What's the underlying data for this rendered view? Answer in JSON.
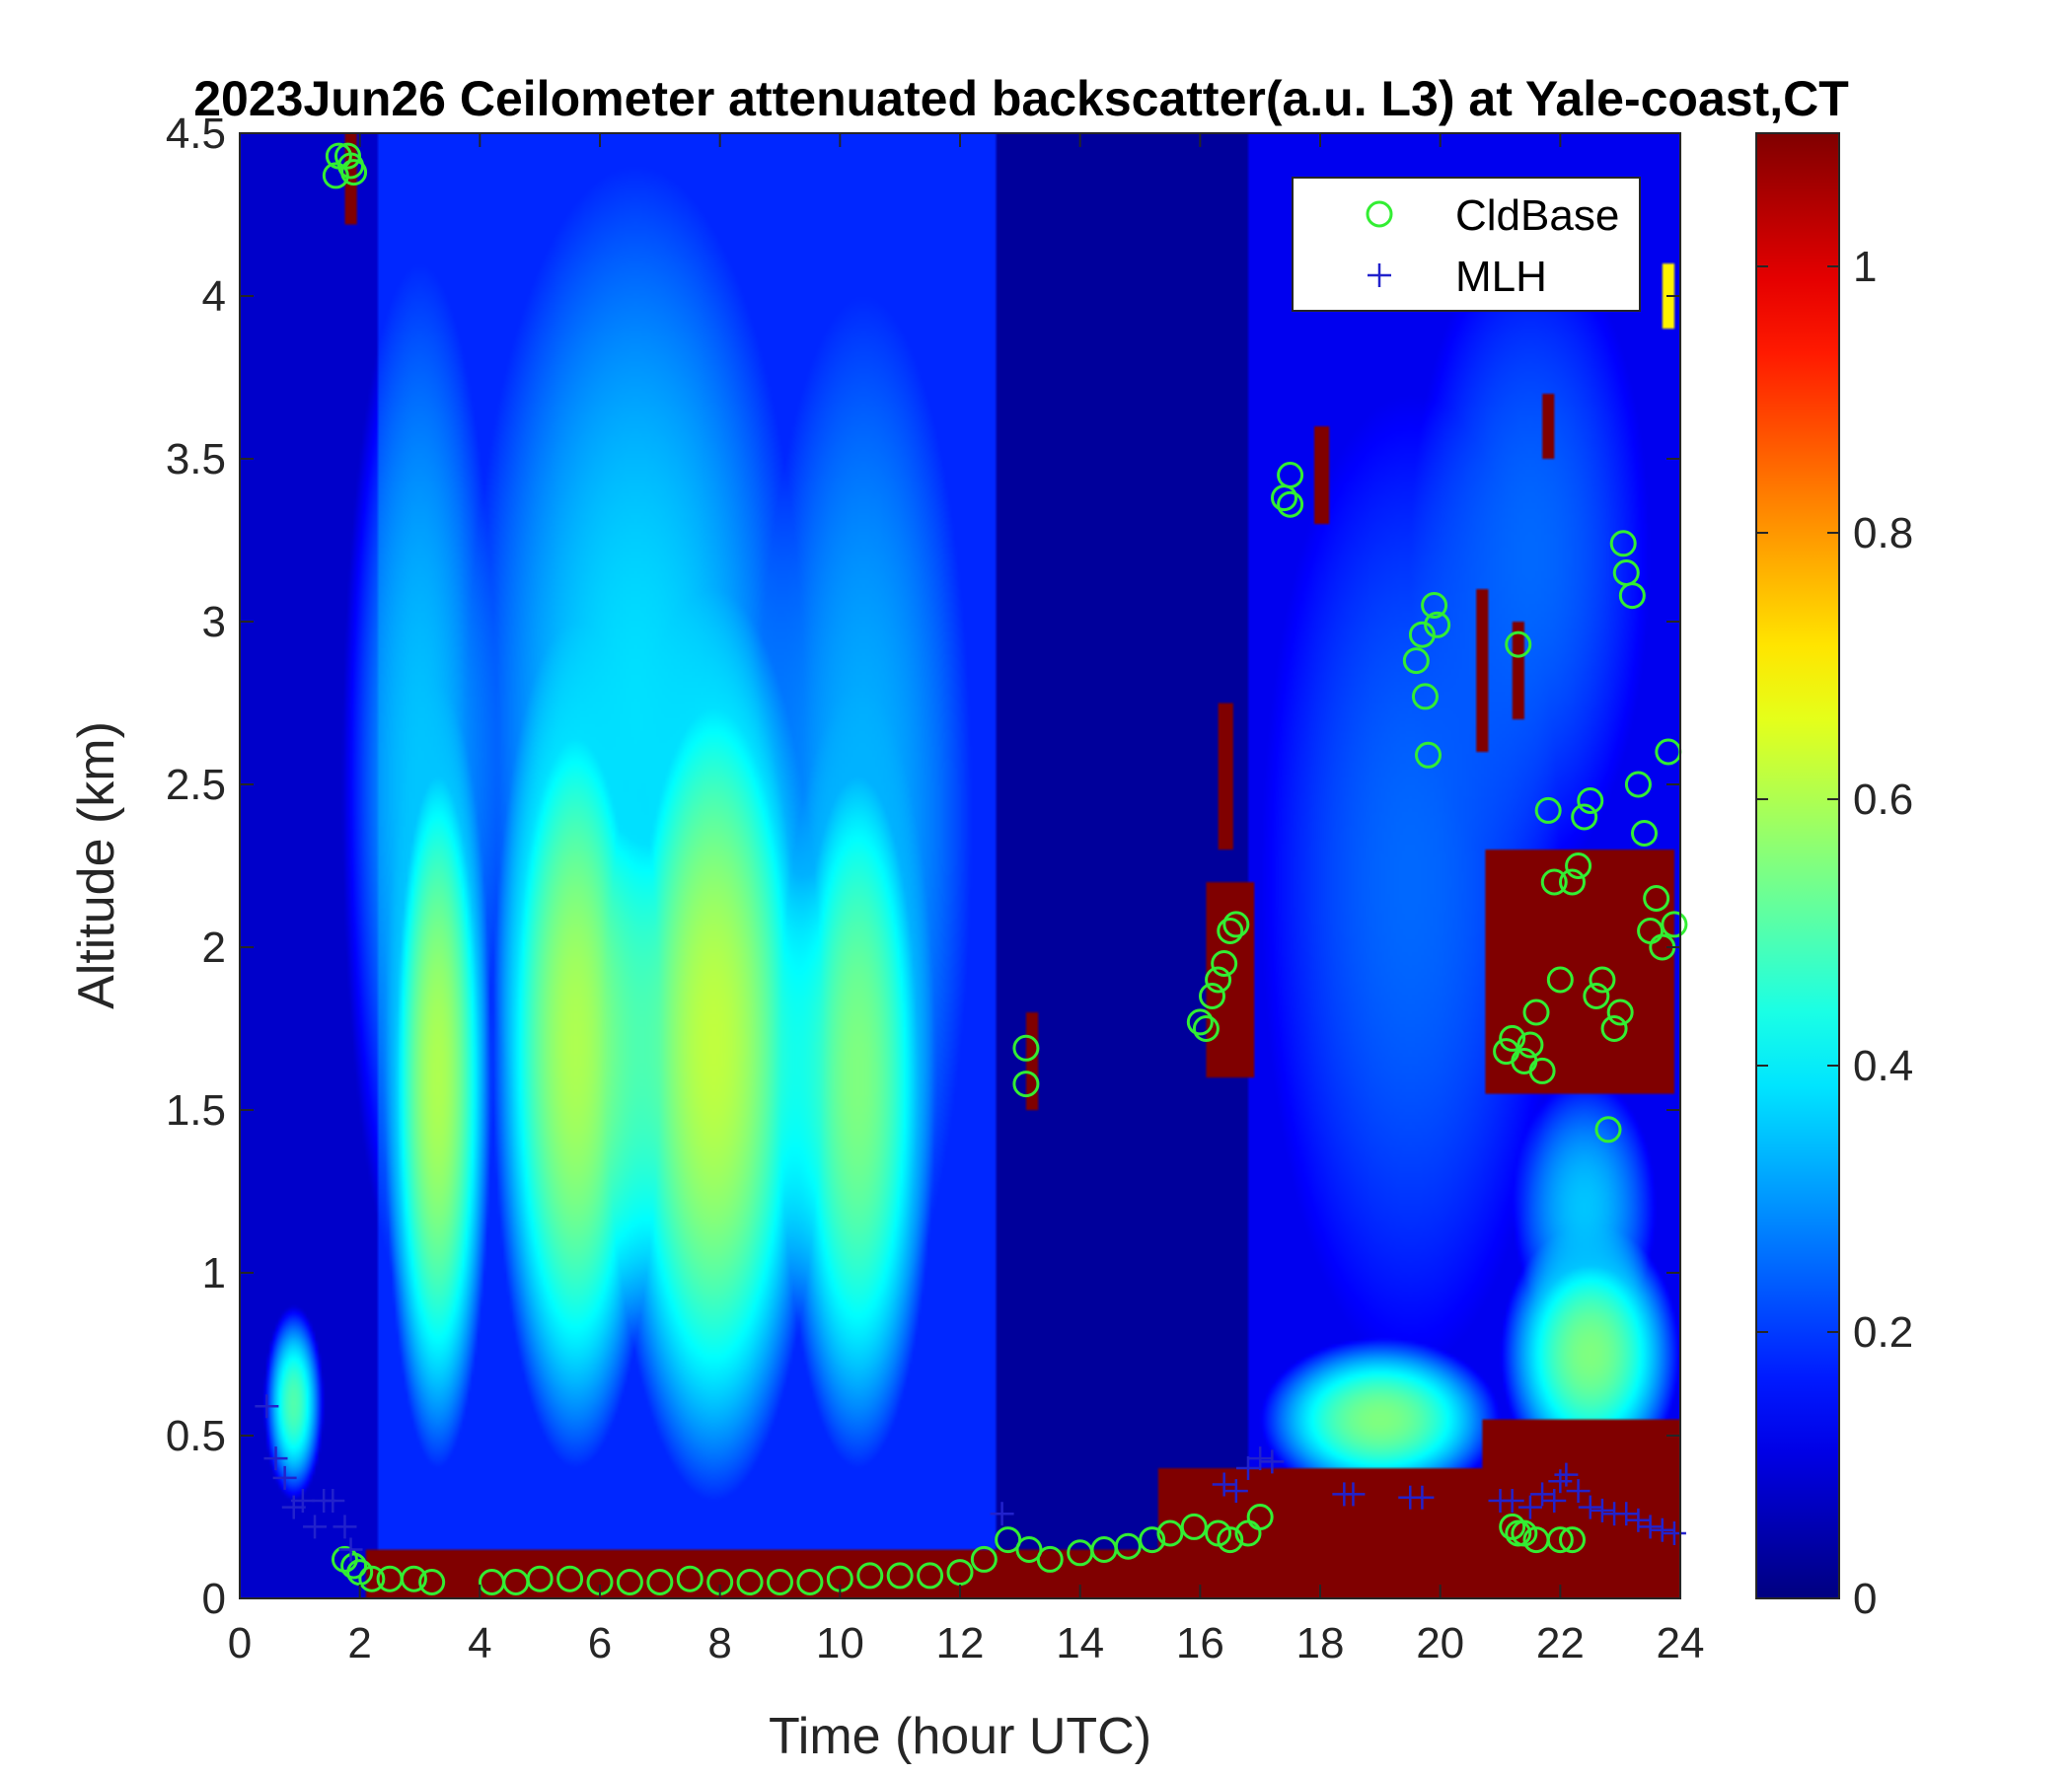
{
  "chart_data": {
    "type": "heatmap",
    "title": "2023Jun26 Ceilometer attenuated backscatter(a.u. L3) at Yale-coast,CT",
    "xlabel": "Time (hour UTC)",
    "ylabel": "Altitude (km)",
    "xlim": [
      0,
      24
    ],
    "ylim": [
      0,
      4.5
    ],
    "x_ticks": [
      "0",
      "2",
      "4",
      "6",
      "8",
      "10",
      "12",
      "14",
      "16",
      "18",
      "20",
      "22",
      "24"
    ],
    "y_ticks": [
      "0",
      "0.5",
      "1",
      "1.5",
      "2",
      "2.5",
      "3",
      "3.5",
      "4",
      "4.5"
    ],
    "colorbar": {
      "colormap": "jet",
      "range": [
        0,
        1.1
      ],
      "ticks": [
        "0",
        "0.2",
        "0.4",
        "0.6",
        "0.8",
        "1"
      ]
    },
    "legend": {
      "position": "top-right",
      "entries": [
        "CldBase",
        "MLH"
      ],
      "colors": [
        "#33ee33",
        "#2222cc"
      ]
    },
    "series": [
      {
        "name": "CldBase",
        "marker": "circle",
        "x": [
          1.6,
          1.65,
          1.8,
          1.9,
          1.85,
          1.75,
          1.9,
          2.0,
          2.2,
          2.5,
          2.9,
          3.2,
          4.2,
          4.6,
          5.0,
          5.5,
          6.0,
          6.5,
          7.0,
          7.5,
          8.0,
          8.5,
          9.0,
          9.5,
          10.0,
          10.5,
          11.0,
          11.5,
          12.0,
          12.4,
          12.8,
          13.1,
          13.1,
          13.15,
          13.5,
          14.0,
          14.4,
          14.8,
          15.2,
          15.5,
          15.9,
          16.0,
          16.1,
          16.2,
          16.3,
          16.4,
          16.5,
          16.6,
          16.3,
          16.5,
          16.8,
          17.0,
          17.4,
          17.5,
          17.5,
          19.6,
          19.7,
          19.75,
          19.8,
          19.9,
          19.95,
          21.1,
          21.2,
          21.3,
          21.4,
          21.5,
          21.6,
          21.7,
          21.8,
          21.9,
          22.0,
          22.2,
          22.3,
          22.4,
          22.5,
          22.6,
          22.7,
          22.8,
          22.9,
          23.0,
          23.05,
          23.1,
          23.2,
          23.3,
          23.4,
          23.5,
          23.6,
          23.7,
          23.8,
          23.9,
          21.2,
          21.3,
          21.4,
          21.6,
          22.0,
          22.2
        ],
        "y": [
          4.37,
          4.43,
          4.43,
          4.38,
          4.4,
          0.12,
          0.1,
          0.08,
          0.06,
          0.06,
          0.06,
          0.05,
          0.05,
          0.05,
          0.06,
          0.06,
          0.05,
          0.05,
          0.05,
          0.06,
          0.05,
          0.05,
          0.05,
          0.05,
          0.06,
          0.07,
          0.07,
          0.07,
          0.08,
          0.12,
          0.18,
          1.69,
          1.58,
          0.15,
          0.12,
          0.14,
          0.15,
          0.16,
          0.18,
          0.2,
          0.22,
          1.77,
          1.75,
          1.85,
          1.9,
          1.95,
          2.05,
          2.07,
          0.2,
          0.18,
          0.2,
          0.25,
          3.38,
          3.45,
          3.36,
          2.88,
          2.96,
          2.77,
          2.59,
          3.05,
          2.99,
          1.68,
          1.72,
          2.93,
          1.65,
          1.7,
          1.8,
          1.62,
          2.42,
          2.2,
          1.9,
          2.2,
          2.25,
          2.4,
          2.45,
          1.85,
          1.9,
          1.44,
          1.75,
          1.8,
          3.24,
          3.15,
          3.08,
          2.5,
          2.35,
          2.05,
          2.15,
          2.0,
          2.6,
          2.07,
          0.22,
          0.2,
          0.2,
          0.18,
          0.18,
          0.18
        ]
      },
      {
        "name": "MLH",
        "marker": "plus",
        "x": [
          0.45,
          0.6,
          0.75,
          0.9,
          1.05,
          1.25,
          1.4,
          1.55,
          1.75,
          1.85,
          12.7,
          16.4,
          16.6,
          16.8,
          17.0,
          17.2,
          18.4,
          18.55,
          19.5,
          19.7,
          21.0,
          21.2,
          21.5,
          21.7,
          21.9,
          22.0,
          22.1,
          22.3,
          22.5,
          22.7,
          22.9,
          23.1,
          23.3,
          23.5,
          23.7,
          23.9
        ],
        "y": [
          0.59,
          0.43,
          0.37,
          0.28,
          0.3,
          0.22,
          0.3,
          0.3,
          0.22,
          0.15,
          0.26,
          0.35,
          0.33,
          0.4,
          0.43,
          0.42,
          0.32,
          0.32,
          0.31,
          0.31,
          0.3,
          0.3,
          0.28,
          0.32,
          0.3,
          0.36,
          0.38,
          0.33,
          0.28,
          0.27,
          0.26,
          0.26,
          0.24,
          0.22,
          0.21,
          0.2
        ]
      }
    ],
    "field_features": [
      {
        "type": "band",
        "x0": 0.0,
        "x1": 2.4,
        "y0": 0.0,
        "y1": 4.5,
        "value": 0.08
      },
      {
        "type": "band",
        "x0": 2.3,
        "x1": 12.6,
        "y0": 0.15,
        "y1": 4.5,
        "value": 0.18
      },
      {
        "type": "band",
        "x0": 12.6,
        "x1": 16.8,
        "y0": 0.15,
        "y1": 4.5,
        "value": 0.03
      },
      {
        "type": "band",
        "x0": 16.8,
        "x1": 24.0,
        "y0": 0.4,
        "y1": 4.5,
        "value": 0.12
      },
      {
        "type": "blob",
        "x": 3.3,
        "y": 1.6,
        "rx": 0.9,
        "ry": 1.2,
        "value": 0.6
      },
      {
        "type": "blob",
        "x": 5.6,
        "y": 1.7,
        "rx": 1.4,
        "ry": 1.3,
        "value": 0.6
      },
      {
        "type": "blob",
        "x": 7.9,
        "y": 1.7,
        "rx": 1.8,
        "ry": 1.4,
        "value": 0.62
      },
      {
        "type": "blob",
        "x": 10.3,
        "y": 1.6,
        "rx": 1.3,
        "ry": 1.2,
        "value": 0.55
      },
      {
        "type": "blob",
        "x": 3.0,
        "y": 2.5,
        "rx": 1.3,
        "ry": 1.6,
        "value": 0.35
      },
      {
        "type": "blob",
        "x": 6.6,
        "y": 2.7,
        "rx": 2.8,
        "ry": 1.7,
        "value": 0.38
      },
      {
        "type": "blob",
        "x": 10.4,
        "y": 2.4,
        "rx": 1.8,
        "ry": 1.6,
        "value": 0.33
      },
      {
        "type": "blob",
        "x": 0.9,
        "y": 0.6,
        "rx": 0.5,
        "ry": 0.3,
        "value": 0.5
      },
      {
        "type": "band",
        "x0": 2.1,
        "x1": 15.3,
        "y0": 0.0,
        "y1": 0.15,
        "value": 1.1
      },
      {
        "type": "band",
        "x0": 15.3,
        "x1": 24.0,
        "y0": 0.0,
        "y1": 0.4,
        "value": 1.1
      },
      {
        "type": "blob",
        "x": 18.5,
        "y": 0.1,
        "rx": 1.0,
        "ry": 0.15,
        "value": 0.9
      },
      {
        "type": "blob",
        "x": 19.0,
        "y": 0.55,
        "rx": 2.0,
        "ry": 0.25,
        "value": 0.55
      },
      {
        "type": "blob",
        "x": 22.5,
        "y": 0.75,
        "rx": 1.5,
        "ry": 0.4,
        "value": 0.55
      },
      {
        "type": "blob",
        "x": 22.4,
        "y": 1.2,
        "rx": 1.2,
        "ry": 0.4,
        "value": 0.35
      },
      {
        "type": "blob",
        "x": 19.5,
        "y": 2.2,
        "rx": 2.5,
        "ry": 1.5,
        "value": 0.25
      },
      {
        "type": "blob",
        "x": 21.5,
        "y": 3.2,
        "rx": 2.0,
        "ry": 1.0,
        "value": 0.25
      },
      {
        "type": "band",
        "x0": 20.7,
        "x1": 24.0,
        "y0": 0.0,
        "y1": 0.55,
        "value": 1.1
      },
      {
        "type": "rect",
        "x0": 1.75,
        "x1": 1.95,
        "y0": 4.22,
        "y1": 4.5,
        "value": 1.1
      },
      {
        "type": "rect",
        "x0": 16.3,
        "x1": 16.55,
        "y0": 2.3,
        "y1": 2.75,
        "value": 1.1
      },
      {
        "type": "rect",
        "x0": 16.1,
        "x1": 16.9,
        "y0": 1.6,
        "y1": 2.2,
        "value": 1.1
      },
      {
        "type": "rect",
        "x0": 13.1,
        "x1": 13.3,
        "y0": 1.5,
        "y1": 1.8,
        "value": 1.1
      },
      {
        "type": "rect",
        "x0": 17.9,
        "x1": 18.15,
        "y0": 3.3,
        "y1": 3.6,
        "value": 1.1
      },
      {
        "type": "rect",
        "x0": 20.6,
        "x1": 20.8,
        "y0": 2.6,
        "y1": 3.1,
        "value": 1.1
      },
      {
        "type": "rect",
        "x0": 21.7,
        "x1": 21.9,
        "y0": 3.5,
        "y1": 3.7,
        "value": 1.1
      },
      {
        "type": "rect",
        "x0": 21.2,
        "x1": 21.4,
        "y0": 2.7,
        "y1": 3.0,
        "value": 1.1
      },
      {
        "type": "rect",
        "x0": 20.75,
        "x1": 23.9,
        "y0": 1.55,
        "y1": 2.3,
        "value": 1.1
      },
      {
        "type": "rect",
        "x0": 23.7,
        "x1": 23.9,
        "y0": 3.9,
        "y1": 4.1,
        "value": 0.7
      }
    ]
  }
}
